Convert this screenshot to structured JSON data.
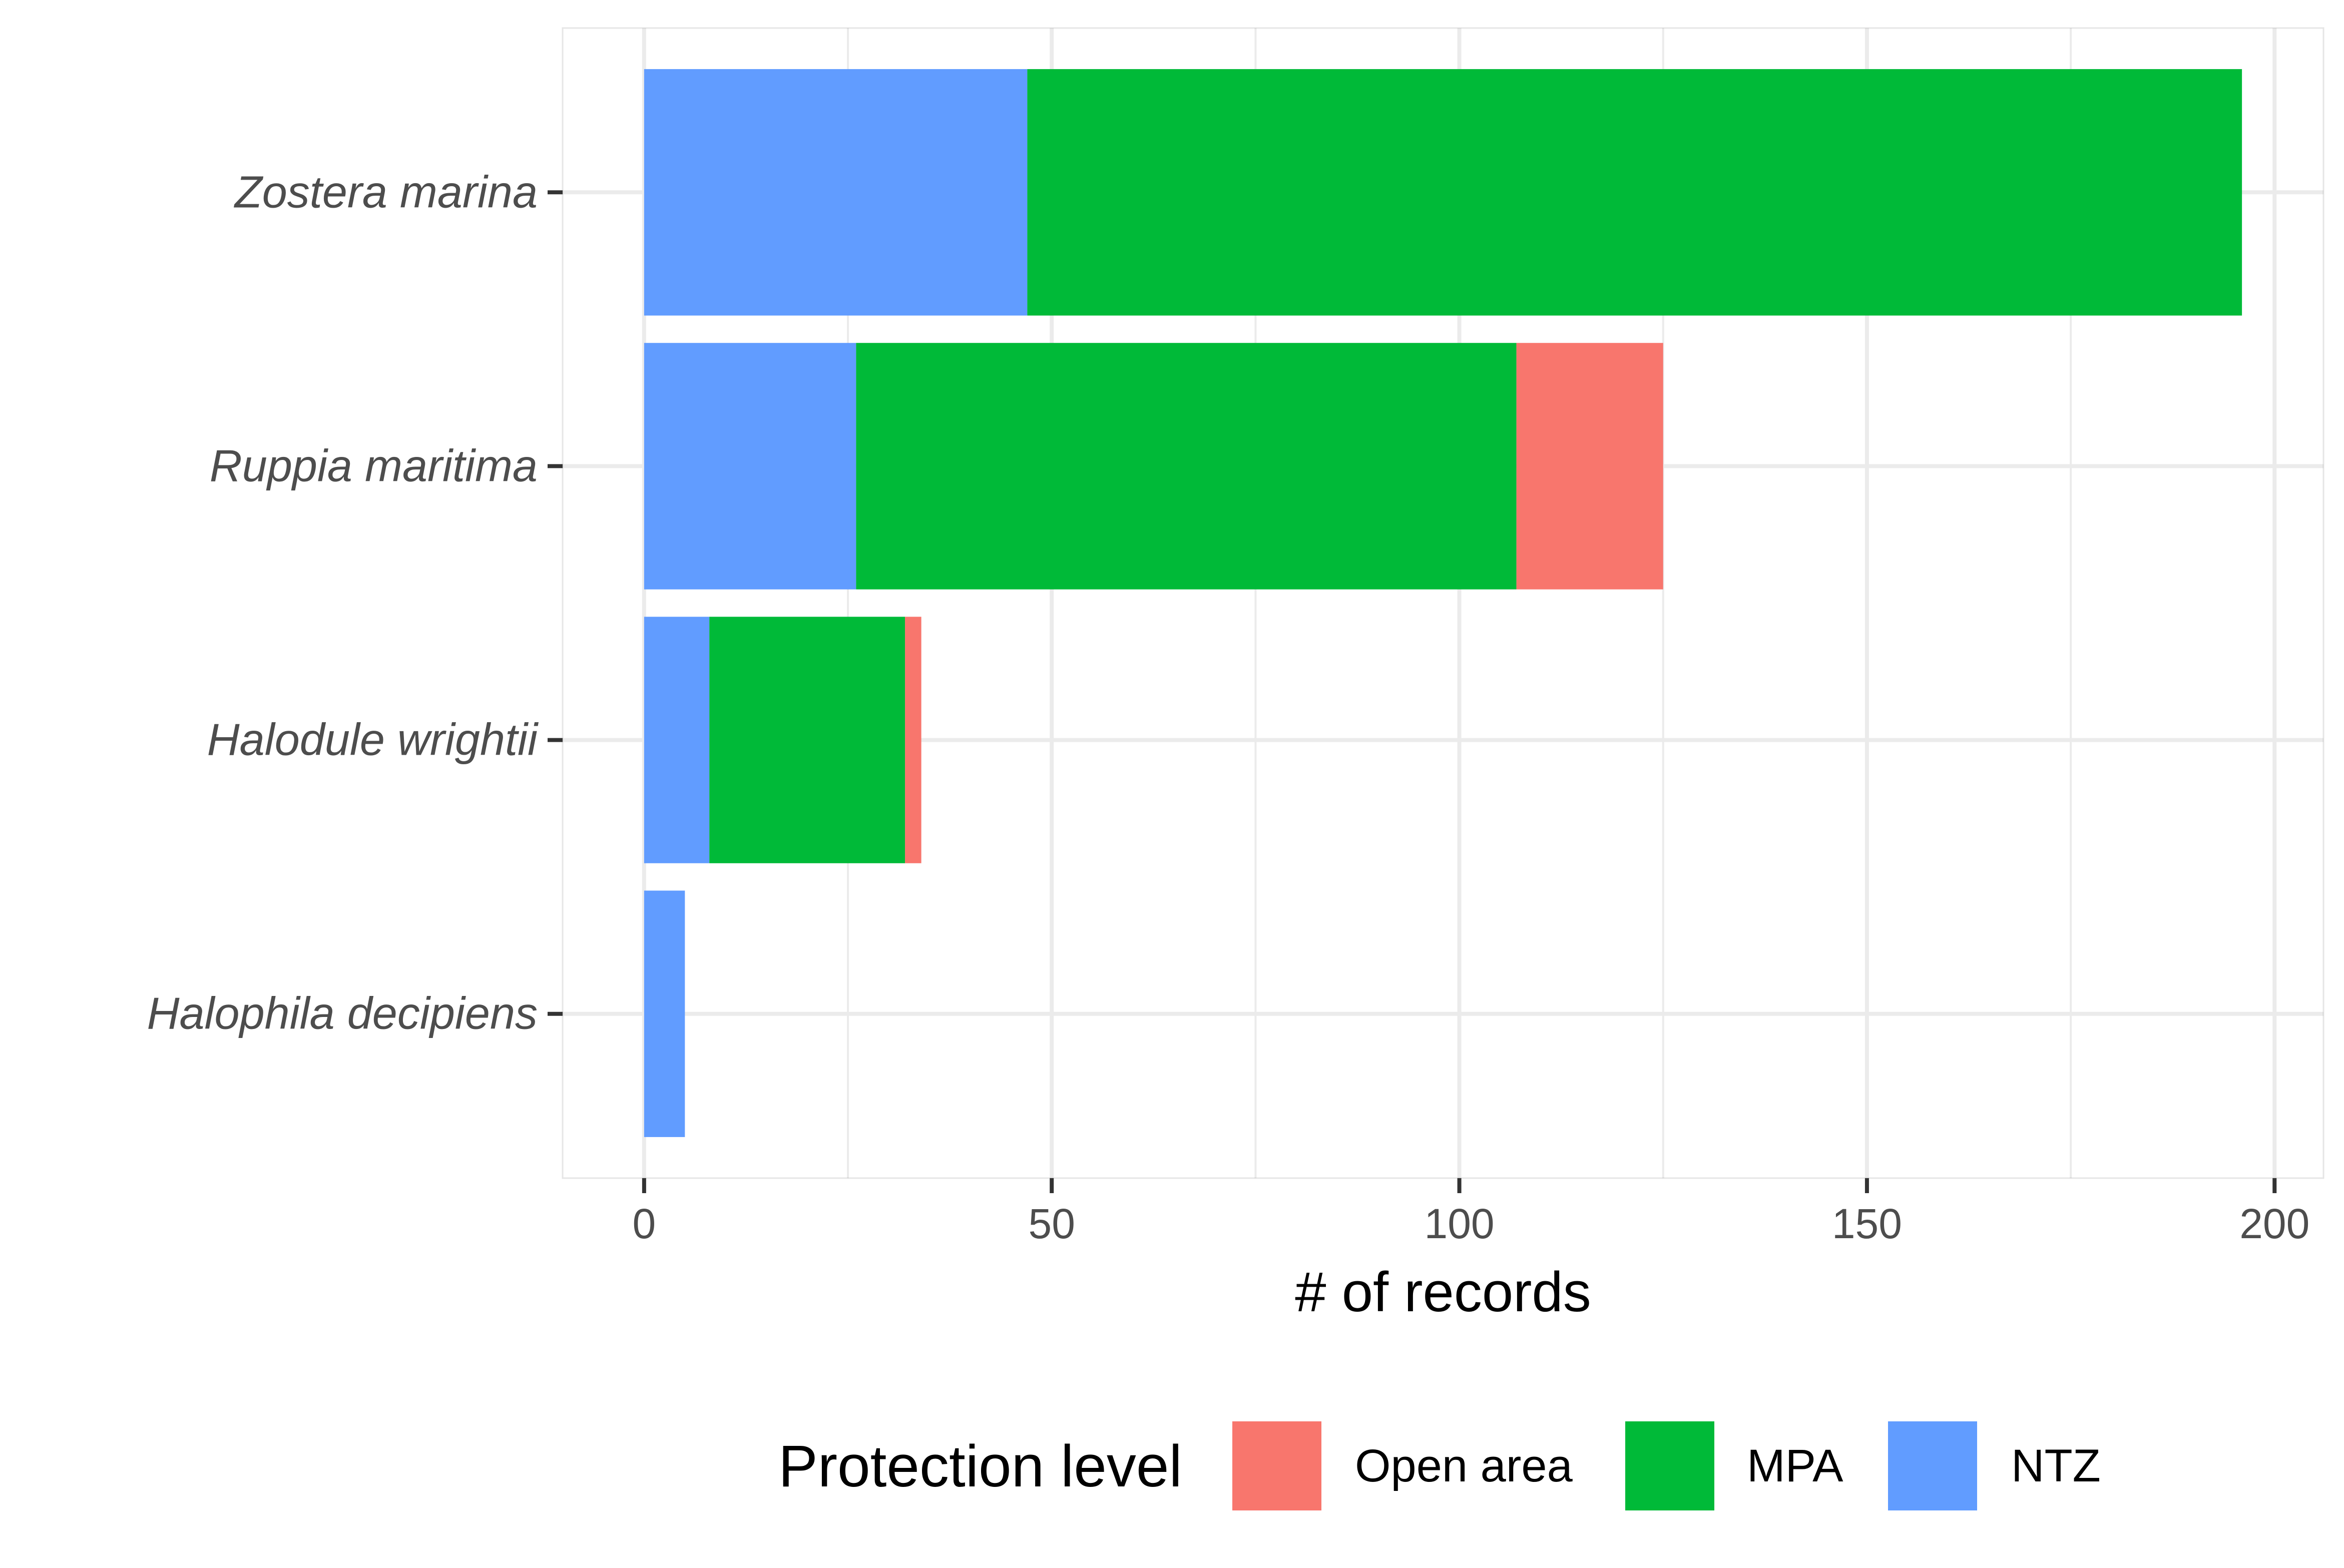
{
  "chart_data": {
    "type": "bar",
    "orientation": "horizontal",
    "stacked": true,
    "categories": [
      "Zostera marina",
      "Ruppia maritima",
      "Halodule wrightii",
      "Halophila decipiens"
    ],
    "series": [
      {
        "name": "NTZ",
        "color": "#619CFF",
        "values": [
          47,
          26,
          8,
          5
        ]
      },
      {
        "name": "MPA",
        "color": "#00BA38",
        "values": [
          149,
          81,
          24,
          0
        ]
      },
      {
        "name": "Open area",
        "color": "#F8766D",
        "values": [
          0,
          18,
          2,
          0
        ]
      }
    ],
    "xlabel": "# of records",
    "ylabel": "",
    "xlim": [
      -10,
      206
    ],
    "xticks": [
      0,
      50,
      100,
      150,
      200
    ],
    "xtick_labels": [
      "0",
      "50",
      "100",
      "150",
      "200"
    ],
    "grid": true,
    "legend": {
      "title": "Protection level",
      "position": "bottom",
      "entries": [
        {
          "label": "Open area",
          "color": "#F8766D"
        },
        {
          "label": "MPA",
          "color": "#00BA38"
        },
        {
          "label": "NTZ",
          "color": "#619CFF"
        }
      ]
    }
  }
}
